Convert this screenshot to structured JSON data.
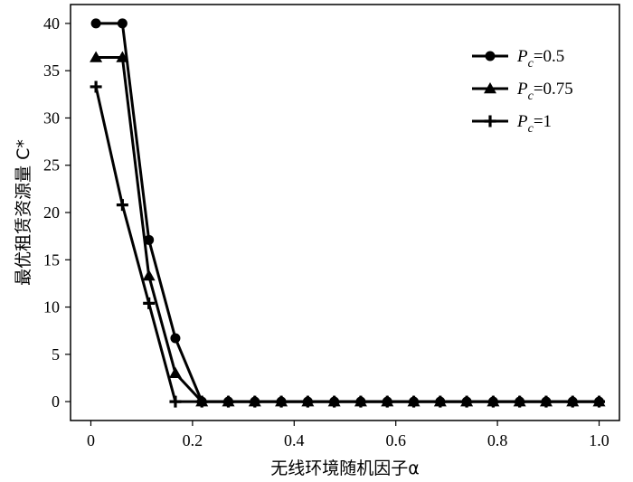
{
  "chart_data": {
    "type": "line",
    "xlabel": "无线环境随机因子α",
    "ylabel": "最优租赁资源量 C*",
    "xlim": [
      -0.04,
      1.04
    ],
    "ylim": [
      -2,
      42
    ],
    "xticks": [
      "0",
      "0.2",
      "0.4",
      "0.6",
      "0.8",
      "1.0"
    ],
    "xtick_values": [
      0,
      0.2,
      0.4,
      0.6,
      0.8,
      1.0
    ],
    "yticks": [
      "0",
      "5",
      "10",
      "15",
      "20",
      "25",
      "30",
      "35",
      "40"
    ],
    "ytick_values": [
      0,
      5,
      10,
      15,
      20,
      25,
      30,
      35,
      40
    ],
    "grid": false,
    "legend_position": "top-right",
    "x": [
      0.01,
      0.0621,
      0.1142,
      0.1663,
      0.2184,
      0.2705,
      0.3226,
      0.3747,
      0.4268,
      0.4789,
      0.531,
      0.5832,
      0.6353,
      0.6874,
      0.7395,
      0.7916,
      0.8437,
      0.8958,
      0.9479,
      1.0
    ],
    "series": [
      {
        "name": "Pc=0.5",
        "legend": {
          "base": "P",
          "sub": "c",
          "suffix": "=0.5"
        },
        "marker": "circle",
        "values": [
          40,
          40,
          17.1,
          6.7,
          0,
          0,
          0,
          0,
          0,
          0,
          0,
          0,
          0,
          0,
          0,
          0,
          0,
          0,
          0,
          0
        ]
      },
      {
        "name": "Pc=0.75",
        "legend": {
          "base": "P",
          "sub": "c",
          "suffix": "=0.75"
        },
        "marker": "triangle",
        "values": [
          36.4,
          36.4,
          13.3,
          3.0,
          0,
          0,
          0,
          0,
          0,
          0,
          0,
          0,
          0,
          0,
          0,
          0,
          0,
          0,
          0,
          0
        ]
      },
      {
        "name": "Pc=1",
        "legend": {
          "base": "P",
          "sub": "c",
          "suffix": "=1"
        },
        "marker": "plus",
        "values": [
          33.3,
          20.8,
          10.4,
          0,
          0,
          0,
          0,
          0,
          0,
          0,
          0,
          0,
          0,
          0,
          0,
          0,
          0,
          0,
          0,
          0
        ]
      }
    ]
  }
}
